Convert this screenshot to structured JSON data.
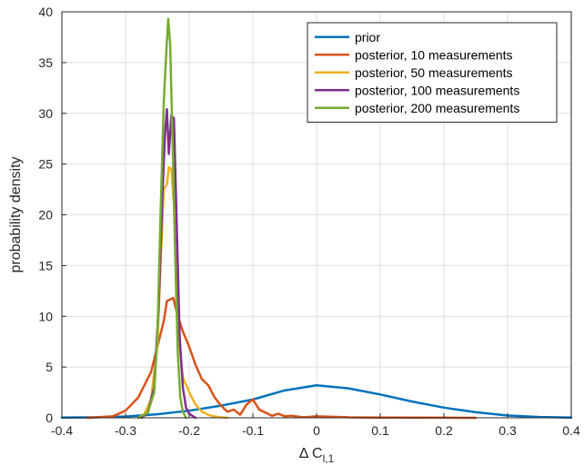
{
  "chart_data": {
    "type": "line",
    "title": "",
    "xlabel_main": "Δ C",
    "xlabel_sub": "l,1",
    "ylabel": "probability density",
    "xlim": [
      -0.4,
      0.4
    ],
    "ylim": [
      0,
      40
    ],
    "xticks": [
      -0.4,
      -0.3,
      -0.2,
      -0.1,
      0,
      0.1,
      0.2,
      0.3,
      0.4
    ],
    "xtick_labels": [
      "-0.4",
      "-0.3",
      "-0.2",
      "-0.1",
      "0",
      "0.1",
      "0.2",
      "0.3",
      "0.4"
    ],
    "yticks": [
      0,
      5,
      10,
      15,
      20,
      25,
      30,
      35,
      40
    ],
    "ytick_labels": [
      "0",
      "5",
      "10",
      "15",
      "20",
      "25",
      "30",
      "35",
      "40"
    ],
    "grid": true,
    "legend_position": "top-right",
    "series": [
      {
        "name": "prior",
        "color": "#0072bd",
        "points": [
          [
            -0.4,
            0.02
          ],
          [
            -0.35,
            0.05
          ],
          [
            -0.3,
            0.12
          ],
          [
            -0.25,
            0.35
          ],
          [
            -0.2,
            0.7
          ],
          [
            -0.15,
            1.2
          ],
          [
            -0.1,
            1.8
          ],
          [
            -0.05,
            2.7
          ],
          [
            0,
            3.2
          ],
          [
            0.05,
            2.9
          ],
          [
            0.1,
            2.3
          ],
          [
            0.15,
            1.6
          ],
          [
            0.2,
            1.0
          ],
          [
            0.25,
            0.55
          ],
          [
            0.3,
            0.22
          ],
          [
            0.35,
            0.08
          ],
          [
            0.4,
            0.02
          ]
        ]
      },
      {
        "name": "posterior, 10 measurements",
        "color": "#d95319",
        "points": [
          [
            -0.36,
            0
          ],
          [
            -0.32,
            0.15
          ],
          [
            -0.3,
            0.7
          ],
          [
            -0.28,
            2.0
          ],
          [
            -0.26,
            4.5
          ],
          [
            -0.25,
            7.0
          ],
          [
            -0.24,
            9.5
          ],
          [
            -0.235,
            11.5
          ],
          [
            -0.225,
            11.8
          ],
          [
            -0.22,
            10.5
          ],
          [
            -0.21,
            8.5
          ],
          [
            -0.2,
            7.0
          ],
          [
            -0.19,
            5.2
          ],
          [
            -0.18,
            3.8
          ],
          [
            -0.17,
            3.2
          ],
          [
            -0.16,
            2.0
          ],
          [
            -0.15,
            1.2
          ],
          [
            -0.14,
            0.6
          ],
          [
            -0.13,
            0.8
          ],
          [
            -0.12,
            0.3
          ],
          [
            -0.11,
            1.3
          ],
          [
            -0.1,
            1.8
          ],
          [
            -0.09,
            0.8
          ],
          [
            -0.08,
            0.5
          ],
          [
            -0.07,
            0.2
          ],
          [
            -0.06,
            0.4
          ],
          [
            -0.05,
            0.15
          ],
          [
            -0.04,
            0.2
          ],
          [
            -0.02,
            0.05
          ],
          [
            0,
            0.15
          ],
          [
            0.05,
            0.05
          ],
          [
            0.1,
            0.02
          ],
          [
            0.2,
            0.01
          ],
          [
            0.25,
            0
          ]
        ]
      },
      {
        "name": "posterior, 50 measurements",
        "color": "#edb120",
        "points": [
          [
            -0.28,
            0
          ],
          [
            -0.27,
            0.4
          ],
          [
            -0.26,
            1.8
          ],
          [
            -0.25,
            7.0
          ],
          [
            -0.245,
            15.0
          ],
          [
            -0.24,
            22.5
          ],
          [
            -0.235,
            23.0
          ],
          [
            -0.232,
            24.7
          ],
          [
            -0.228,
            24.5
          ],
          [
            -0.224,
            21.0
          ],
          [
            -0.22,
            13.0
          ],
          [
            -0.215,
            7.0
          ],
          [
            -0.21,
            4.0
          ],
          [
            -0.2,
            2.5
          ],
          [
            -0.19,
            1.3
          ],
          [
            -0.18,
            0.6
          ],
          [
            -0.17,
            0.3
          ],
          [
            -0.16,
            0.12
          ],
          [
            -0.15,
            0.05
          ],
          [
            -0.14,
            0
          ]
        ]
      },
      {
        "name": "posterior, 100 measurements",
        "color": "#7e2f8e",
        "points": [
          [
            -0.275,
            0
          ],
          [
            -0.265,
            0.5
          ],
          [
            -0.255,
            3.0
          ],
          [
            -0.248,
            11.0
          ],
          [
            -0.242,
            22.0
          ],
          [
            -0.238,
            28.0
          ],
          [
            -0.235,
            30.4
          ],
          [
            -0.232,
            26.0
          ],
          [
            -0.228,
            29.8
          ],
          [
            -0.224,
            29.5
          ],
          [
            -0.22,
            20.0
          ],
          [
            -0.215,
            8.0
          ],
          [
            -0.21,
            3.0
          ],
          [
            -0.205,
            1.0
          ],
          [
            -0.2,
            0.4
          ],
          [
            -0.19,
            0
          ]
        ]
      },
      {
        "name": "posterior, 200 measurements",
        "color": "#77ac30",
        "points": [
          [
            -0.28,
            0
          ],
          [
            -0.265,
            0.5
          ],
          [
            -0.255,
            2.5
          ],
          [
            -0.25,
            8.0
          ],
          [
            -0.245,
            20.0
          ],
          [
            -0.24,
            31.0
          ],
          [
            -0.236,
            36.0
          ],
          [
            -0.233,
            39.3
          ],
          [
            -0.23,
            37.0
          ],
          [
            -0.226,
            27.0
          ],
          [
            -0.222,
            16.0
          ],
          [
            -0.218,
            6.5
          ],
          [
            -0.214,
            2.0
          ],
          [
            -0.21,
            0.6
          ],
          [
            -0.205,
            0
          ]
        ]
      }
    ]
  }
}
